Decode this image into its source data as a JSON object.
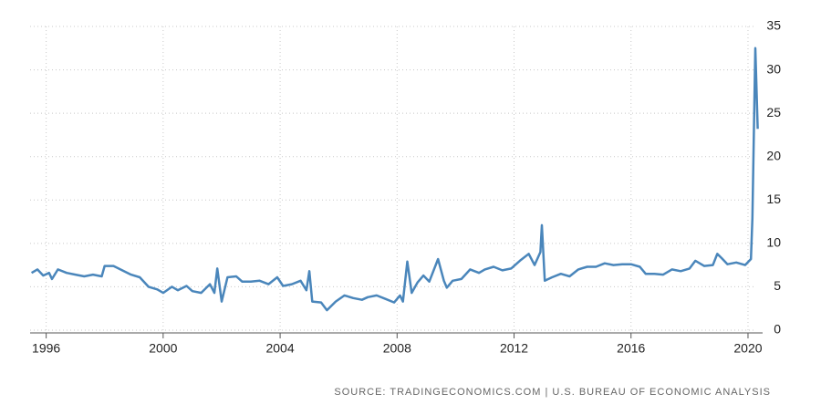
{
  "chart_data": {
    "type": "line",
    "source": "SOURCE: TRADINGECONOMICS.COM | U.S. BUREAU OF ECONOMIC ANALYSIS",
    "x": [
      1995.5,
      1995.7,
      1995.9,
      1996.1,
      1996.2,
      1996.4,
      1996.7,
      1997.0,
      1997.3,
      1997.6,
      1997.9,
      1998.0,
      1998.3,
      1998.6,
      1998.9,
      1999.2,
      1999.5,
      1999.8,
      2000.0,
      2000.3,
      2000.5,
      2000.8,
      2001.0,
      2001.3,
      2001.6,
      2001.75,
      2001.85,
      2002.0,
      2002.2,
      2002.5,
      2002.7,
      2003.0,
      2003.3,
      2003.6,
      2003.9,
      2004.1,
      2004.4,
      2004.7,
      2004.9,
      2005.0,
      2005.1,
      2005.4,
      2005.6,
      2005.9,
      2006.2,
      2006.5,
      2006.8,
      2007.0,
      2007.3,
      2007.6,
      2007.9,
      2008.1,
      2008.2,
      2008.35,
      2008.5,
      2008.7,
      2008.9,
      2009.1,
      2009.4,
      2009.6,
      2009.7,
      2009.9,
      2010.2,
      2010.5,
      2010.8,
      2011.0,
      2011.3,
      2011.6,
      2011.9,
      2012.2,
      2012.5,
      2012.7,
      2012.9,
      2012.95,
      2013.05,
      2013.3,
      2013.6,
      2013.9,
      2014.2,
      2014.5,
      2014.8,
      2015.1,
      2015.4,
      2015.7,
      2016.0,
      2016.3,
      2016.5,
      2016.8,
      2017.1,
      2017.4,
      2017.7,
      2018.0,
      2018.2,
      2018.5,
      2018.8,
      2018.95,
      2019.1,
      2019.3,
      2019.6,
      2019.9,
      2020.1,
      2020.15,
      2020.25,
      2020.33
    ],
    "series": [
      {
        "color": "#4a86bb",
        "values": [
          6.6,
          7.0,
          6.3,
          6.6,
          5.9,
          7.0,
          6.6,
          6.4,
          6.2,
          6.4,
          6.2,
          7.4,
          7.4,
          6.9,
          6.4,
          6.1,
          5.0,
          4.7,
          4.3,
          5.0,
          4.6,
          5.1,
          4.5,
          4.3,
          5.3,
          4.3,
          7.1,
          3.3,
          6.1,
          6.2,
          5.6,
          5.6,
          5.7,
          5.3,
          6.1,
          5.1,
          5.3,
          5.7,
          4.6,
          6.8,
          3.3,
          3.2,
          2.3,
          3.3,
          4.0,
          3.7,
          3.5,
          3.8,
          4.0,
          3.6,
          3.2,
          4.0,
          3.3,
          7.9,
          4.3,
          5.5,
          6.3,
          5.6,
          8.2,
          5.7,
          4.9,
          5.7,
          5.9,
          7.0,
          6.6,
          7.0,
          7.3,
          6.9,
          7.1,
          8.0,
          8.8,
          7.5,
          9.0,
          12.1,
          5.7,
          6.1,
          6.5,
          6.2,
          7.0,
          7.3,
          7.3,
          7.7,
          7.5,
          7.6,
          7.6,
          7.3,
          6.5,
          6.5,
          6.4,
          7.0,
          6.8,
          7.1,
          8.0,
          7.4,
          7.5,
          8.8,
          8.3,
          7.6,
          7.8,
          7.5,
          8.2,
          12.9,
          32.5,
          23.2
        ]
      }
    ],
    "xlim": [
      1995.45,
      2020.5
    ],
    "xticks": [
      1996,
      2000,
      2004,
      2008,
      2012,
      2016,
      2020
    ],
    "ylim": [
      0,
      35
    ],
    "yticks": [
      0,
      5,
      10,
      15,
      20,
      25,
      30,
      35
    ],
    "grid": true
  }
}
